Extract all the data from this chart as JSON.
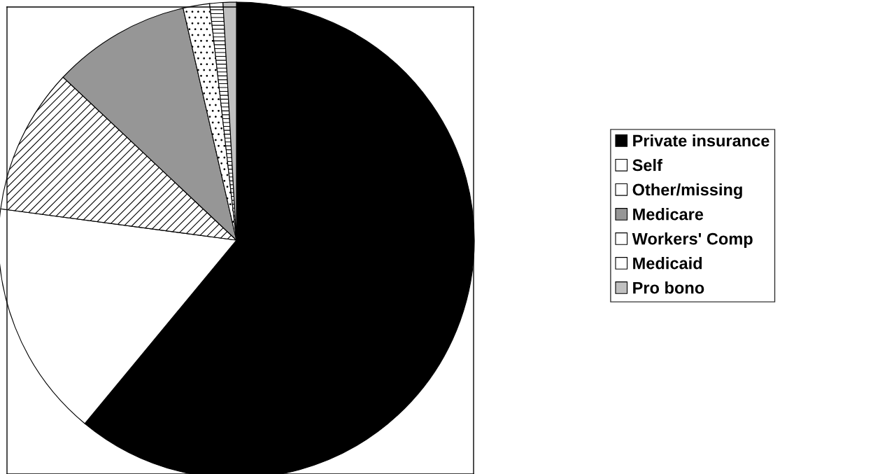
{
  "chart_data": {
    "type": "pie",
    "categories": [
      "Private insurance",
      "Self",
      "Other/missing",
      "Medicare",
      "Workers' Comp",
      "Medicaid",
      "Pro bono"
    ],
    "values": [
      61.0,
      16.1,
      9.9,
      9.4,
      1.8,
      0.9,
      0.9
    ],
    "colors": [
      "#000000",
      "#ffffff",
      "#ffffff",
      "#969696",
      "#ffffff",
      "#ffffff",
      "#c0c0c0"
    ],
    "legend": "right"
  }
}
